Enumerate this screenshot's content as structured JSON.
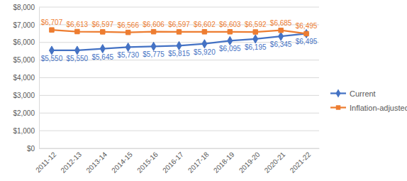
{
  "chart_data": {
    "type": "line",
    "categories": [
      "2011-12",
      "2012-13",
      "2013-14",
      "2014-15",
      "2015-16",
      "2016-17",
      "2017-18",
      "2018-19",
      "2019-20",
      "2020-21",
      "2021-22"
    ],
    "series": [
      {
        "name": "Current",
        "color": "#4472c4",
        "marker": "diamond",
        "values": [
          5550,
          5550,
          5645,
          5730,
          5775,
          5815,
          5920,
          6095,
          6195,
          6345,
          6495
        ],
        "value_labels": [
          "$5,550",
          "$5,550",
          "$5,645",
          "$5,730",
          "$5,775",
          "$5,815",
          "$5,920",
          "$6,095",
          "$6,195",
          "$6,345",
          "$6,495"
        ]
      },
      {
        "name": "Inflation-adjusted",
        "color": "#ed7d31",
        "marker": "square",
        "values": [
          6707,
          6613,
          6597,
          6566,
          6606,
          6597,
          6602,
          6603,
          6592,
          6685,
          6495
        ],
        "value_labels": [
          "$6,707",
          "$6,613",
          "$6,597",
          "$6,566",
          "$6,606",
          "$6,597",
          "$6,602",
          "$6,603",
          "$6,592",
          "$6,685",
          "$6,495"
        ]
      }
    ],
    "ylim": [
      0,
      8000
    ],
    "yticks": [
      {
        "value": 0,
        "label": "$0"
      },
      {
        "value": 1000,
        "label": "$1,000"
      },
      {
        "value": 2000,
        "label": "$2,000"
      },
      {
        "value": 3000,
        "label": "$3,000"
      },
      {
        "value": 4000,
        "label": "$4,000"
      },
      {
        "value": 5000,
        "label": "$5,000"
      },
      {
        "value": 6000,
        "label": "$6,000"
      },
      {
        "value": 7000,
        "label": "$7,000"
      },
      {
        "value": 8000,
        "label": "$8,000"
      }
    ],
    "grid": true,
    "legend": "right",
    "data_labels": true
  }
}
